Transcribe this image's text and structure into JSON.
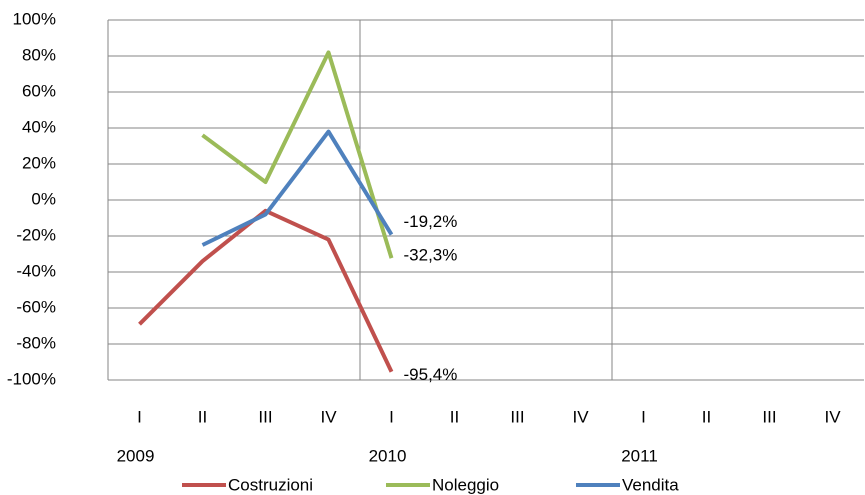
{
  "chart_data": {
    "type": "line",
    "categories": [
      "I",
      "II",
      "III",
      "IV",
      "I",
      "II",
      "III",
      "IV",
      "I",
      "II",
      "III",
      "IV"
    ],
    "years": [
      "2009",
      null,
      null,
      null,
      "2010",
      null,
      null,
      null,
      "2011",
      null,
      null,
      null
    ],
    "series": [
      {
        "name": "Costruzioni",
        "color": "#c0504d",
        "values": [
          -69,
          -34,
          -6,
          -22,
          -95.4,
          null,
          null,
          null,
          null,
          null,
          null,
          null
        ],
        "value_labels": [
          null,
          null,
          null,
          null,
          "-95,4%",
          null,
          null,
          null,
          null,
          null,
          null,
          null
        ]
      },
      {
        "name": "Noleggio",
        "color": "#9bbb59",
        "values": [
          null,
          36,
          10,
          82,
          -32.3,
          null,
          null,
          null,
          null,
          null,
          null,
          null
        ],
        "value_labels": [
          null,
          null,
          null,
          null,
          "-32,3%",
          null,
          null,
          null,
          null,
          null,
          null,
          null
        ]
      },
      {
        "name": "Vendita",
        "color": "#4f81bd",
        "values": [
          null,
          -25,
          -8,
          38,
          -19.2,
          null,
          null,
          null,
          null,
          null,
          null,
          null
        ],
        "value_labels": [
          null,
          null,
          null,
          null,
          "-19,2%",
          null,
          null,
          null,
          null,
          null,
          null,
          null
        ]
      }
    ],
    "ylim": [
      -100,
      100
    ],
    "yticks": [
      {
        "value": -100,
        "label": "-100%"
      },
      {
        "value": -80,
        "label": "-80%"
      },
      {
        "value": -60,
        "label": "-60%"
      },
      {
        "value": -40,
        "label": "-40%"
      },
      {
        "value": -20,
        "label": "-20%"
      },
      {
        "value": 0,
        "label": "0%"
      },
      {
        "value": 20,
        "label": "20%"
      },
      {
        "value": 40,
        "label": "40%"
      },
      {
        "value": 60,
        "label": "60%"
      },
      {
        "value": 80,
        "label": "80%"
      },
      {
        "value": 100,
        "label": "100%"
      }
    ],
    "grid": true,
    "legend": "bottom"
  }
}
